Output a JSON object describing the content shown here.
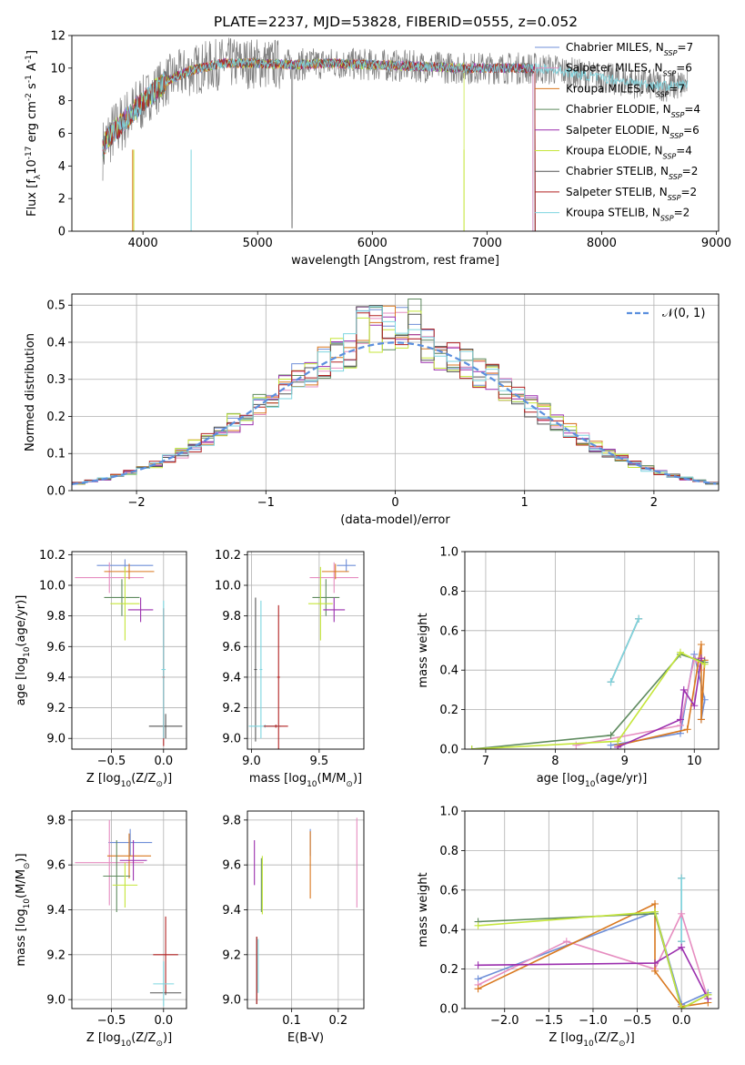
{
  "title": "PLATE=2237, MJD=53828, FIBERID=0555, z=0.052",
  "series": [
    {
      "id": "chabrier_miles",
      "label": "Chabrier MILES, N$_{SSP}$=7",
      "base": "Chabrier MILES, N",
      "sub": "SSP",
      "tail": "=7",
      "color": "#6f8fd8"
    },
    {
      "id": "salpeter_miles",
      "label": "Salpeter MILES, N$_{SSP}$=6",
      "base": "Salpeter MILES, N",
      "sub": "SSP",
      "tail": "=6",
      "color": "#e68dc0"
    },
    {
      "id": "kroupa_miles",
      "label": "Kroupa MILES, N$_{SSP}$=7",
      "base": "Kroupa MILES, N",
      "sub": "SSP",
      "tail": "=7",
      "color": "#d9781f"
    },
    {
      "id": "chabrier_elodie",
      "label": "Chabrier ELODIE, N$_{SSP}$=4",
      "base": "Chabrier ELODIE, N",
      "sub": "SSP",
      "tail": "=4",
      "color": "#5f8b5f"
    },
    {
      "id": "salpeter_elodie",
      "label": "Salpeter ELODIE, N$_{SSP}$=6",
      "base": "Salpeter ELODIE, N",
      "sub": "SSP",
      "tail": "=6",
      "color": "#9b2fae"
    },
    {
      "id": "kroupa_elodie",
      "label": "Kroupa ELODIE, N$_{SSP}$=4",
      "base": "Kroupa ELODIE, N",
      "sub": "SSP",
      "tail": "=4",
      "color": "#c5e63a"
    },
    {
      "id": "chabrier_stelib",
      "label": "Chabrier STELIB, N$_{SSP}$=2",
      "base": "Chabrier STELIB, N",
      "sub": "SSP",
      "tail": "=2",
      "color": "#555555"
    },
    {
      "id": "salpeter_stelib",
      "label": "Salpeter STELIB, N$_{SSP}$=2",
      "base": "Salpeter STELIB, N",
      "sub": "SSP",
      "tail": "=2",
      "color": "#b22222"
    },
    {
      "id": "kroupa_stelib",
      "label": "Kroupa STELIB, N$_{SSP}$=2",
      "base": "Kroupa STELIB, N",
      "sub": "SSP",
      "tail": "=2",
      "color": "#7ed6e0"
    }
  ],
  "chart_data": [
    {
      "id": "spectrum",
      "type": "line",
      "xlabel": "wavelength [Angstrom, rest frame]",
      "ylabel": "Flux [f$_\\lambda$10$^{-17}$ erg cm$^{-2}$ s$^{-1}$ A$^{-1}$]",
      "xlim": [
        3380,
        9020
      ],
      "ylim": [
        0,
        12
      ],
      "xticks": [
        4000,
        5000,
        6000,
        7000,
        8000,
        9000
      ],
      "yticks": [
        0,
        2,
        4,
        6,
        8,
        10,
        12
      ],
      "grid": false,
      "data_note": "observed spectrum (grey) 3650-8750 A: rises from ~5 at 3650 A to ~10 at 4500 A, stays ~10-10.5 to 7400 A, then declines to ~8.5-9 by 8700 A; model fits overlay the data and truncate at different wavelengths",
      "data_curve": {
        "x": [
          3650,
          3700,
          3800,
          3900,
          4000,
          4100,
          4200,
          4300,
          4400,
          4500,
          4700,
          5000,
          5300,
          5600,
          6000,
          6400,
          6800,
          7200,
          7400,
          7600,
          7800,
          8000,
          8200,
          8400,
          8600,
          8750
        ],
        "y": [
          5.0,
          5.8,
          6.5,
          7.2,
          8.0,
          8.6,
          9.2,
          9.5,
          9.8,
          10.0,
          10.3,
          10.3,
          10.2,
          10.3,
          10.2,
          10.1,
          10.0,
          10.0,
          10.0,
          9.9,
          9.6,
          9.4,
          9.2,
          9.0,
          8.9,
          9.0
        ]
      },
      "model_end_wavelength": {
        "chabrier_miles": 7400,
        "salpeter_miles": 7400,
        "kroupa_miles": 7420,
        "kroupa_elodie": 6800,
        "kroupa_stelib": 8750
      },
      "legend_location": "right"
    },
    {
      "id": "residuals",
      "type": "step",
      "xlabel": "(data-model)/error",
      "ylabel": "Normed distribution",
      "xlim": [
        -2.5,
        2.5
      ],
      "ylim": [
        0,
        0.53
      ],
      "xticks": [
        -2,
        -1,
        0,
        1,
        2
      ],
      "yticks": [
        0.0,
        0.1,
        0.2,
        0.3,
        0.4,
        0.5
      ],
      "grid": true,
      "reference": {
        "label": "$\\mathcal{N}(0,1)$",
        "display": "𝒩(0, 1)",
        "color": "#5b8fde",
        "style": "dashed",
        "mean": 0,
        "sigma": 1
      },
      "bin_width": 0.1,
      "note": "nine histograms (one per model) closely following the unit normal, with peaks near 0.47-0.51 around x=-0.2 to 0.15"
    },
    {
      "id": "age_vs_Z",
      "type": "errorbar",
      "xlabel": "Z [log$_{10}$(Z/Z$_\\odot$)]",
      "ylabel": "age  [log$_{10}$(age/yr)]",
      "xlim": [
        -0.88,
        0.22
      ],
      "ylim": [
        8.93,
        10.22
      ],
      "xticks": [
        -0.5,
        0.0
      ],
      "yticks": [
        9.0,
        9.2,
        9.4,
        9.6,
        9.8,
        10.0,
        10.2
      ],
      "grid": true,
      "points": [
        {
          "s": "chabrier_miles",
          "x": -0.37,
          "xerr": 0.27,
          "y": 10.13,
          "yerr": 0.04
        },
        {
          "s": "salpeter_miles",
          "x": -0.52,
          "xerr": 0.33,
          "y": 10.05,
          "yerr": 0.1
        },
        {
          "s": "kroupa_miles",
          "x": -0.33,
          "xerr": 0.24,
          "y": 10.09,
          "yerr": 0.05
        },
        {
          "s": "chabrier_elodie",
          "x": -0.4,
          "xerr": 0.17,
          "y": 9.92,
          "yerr": 0.12
        },
        {
          "s": "salpeter_elodie",
          "x": -0.22,
          "xerr": 0.12,
          "y": 9.84,
          "yerr": 0.08
        },
        {
          "s": "kroupa_elodie",
          "x": -0.37,
          "xerr": 0.14,
          "y": 9.88,
          "yerr": 0.24
        },
        {
          "s": "chabrier_stelib",
          "x": 0.02,
          "xerr": 0.16,
          "y": 9.08,
          "yerr": 0.08
        },
        {
          "s": "salpeter_stelib",
          "x": 0.0,
          "xerr": 0.01,
          "y": 9.4,
          "yerr": 0.45
        },
        {
          "s": "kroupa_stelib",
          "x": 0.0,
          "xerr": 0.02,
          "y": 9.45,
          "yerr": 0.45
        }
      ]
    },
    {
      "id": "age_vs_mass",
      "type": "errorbar",
      "xlabel": "mass [log$_{10}$(M/M$_\\odot$)]",
      "ylabel": "",
      "xlim": [
        8.97,
        9.83
      ],
      "ylim": [
        8.93,
        10.22
      ],
      "xticks": [
        9.0,
        9.5
      ],
      "yticks": [
        9.0,
        9.2,
        9.4,
        9.6,
        9.8,
        10.0,
        10.2
      ],
      "grid": true,
      "points": [
        {
          "s": "chabrier_miles",
          "x": 9.7,
          "xerr": 0.07,
          "y": 10.13,
          "yerr": 0.04
        },
        {
          "s": "salpeter_miles",
          "x": 9.61,
          "xerr": 0.18,
          "y": 10.05,
          "yerr": 0.1
        },
        {
          "s": "kroupa_miles",
          "x": 9.62,
          "xerr": 0.1,
          "y": 10.09,
          "yerr": 0.05
        },
        {
          "s": "chabrier_elodie",
          "x": 9.55,
          "xerr": 0.1,
          "y": 9.92,
          "yerr": 0.12
        },
        {
          "s": "salpeter_elodie",
          "x": 9.61,
          "xerr": 0.08,
          "y": 9.84,
          "yerr": 0.08
        },
        {
          "s": "kroupa_elodie",
          "x": 9.51,
          "xerr": 0.09,
          "y": 9.88,
          "yerr": 0.24
        },
        {
          "s": "chabrier_stelib",
          "x": 9.03,
          "xerr": 0.01,
          "y": 9.45,
          "yerr": 0.47
        },
        {
          "s": "salpeter_stelib",
          "x": 9.2,
          "xerr": 0.01,
          "y": 9.4,
          "yerr": 0.47
        },
        {
          "s": "kroupa_stelib",
          "x": 9.07,
          "xerr": 0.01,
          "y": 9.45,
          "yerr": 0.45
        },
        {
          "s": "kroupa_stelib",
          "x": 9.1,
          "xerr": 0.12,
          "y": 9.08,
          "yerr": 0.01
        },
        {
          "s": "salpeter_stelib",
          "x": 9.18,
          "xerr": 0.09,
          "y": 9.08,
          "yerr": 0.01
        }
      ]
    },
    {
      "id": "weight_vs_age",
      "type": "line",
      "xlabel": "age  [log$_{10}$(age/yr)]",
      "ylabel": "mass weight",
      "xlim": [
        6.7,
        10.35
      ],
      "ylim": [
        0,
        1
      ],
      "xticks": [
        7,
        8,
        9,
        10
      ],
      "yticks": [
        0.0,
        0.2,
        0.4,
        0.6,
        0.8,
        1.0
      ],
      "grid": true,
      "lines": [
        {
          "s": "chabrier_stelib",
          "x": [
            8.8,
            9.2
          ],
          "y": [
            0.34,
            0.66
          ]
        },
        {
          "s": "kroupa_stelib",
          "x": [
            8.8,
            9.2
          ],
          "y": [
            0.34,
            0.66
          ]
        },
        {
          "s": "chabrier_miles",
          "x": [
            8.8,
            9.8,
            10.0,
            10.15,
            10.1
          ],
          "y": [
            0.02,
            0.08,
            0.48,
            0.25,
            0.15
          ]
        },
        {
          "s": "salpeter_miles",
          "x": [
            8.3,
            9.8,
            10.0,
            10.1
          ],
          "y": [
            0.02,
            0.12,
            0.46,
            0.4
          ]
        },
        {
          "s": "kroupa_miles",
          "x": [
            8.9,
            9.9,
            10.1,
            10.1,
            10.15
          ],
          "y": [
            0.02,
            0.1,
            0.53,
            0.15,
            0.45
          ]
        },
        {
          "s": "chabrier_elodie",
          "x": [
            6.8,
            8.8,
            9.8,
            10.15
          ],
          "y": [
            0.0,
            0.07,
            0.48,
            0.44
          ]
        },
        {
          "s": "salpeter_elodie",
          "x": [
            8.9,
            9.8,
            9.85,
            10.0,
            10.1
          ],
          "y": [
            0.01,
            0.15,
            0.3,
            0.22,
            0.46
          ]
        },
        {
          "s": "kroupa_elodie",
          "x": [
            6.8,
            8.9,
            9.8,
            10.15
          ],
          "y": [
            0.0,
            0.04,
            0.49,
            0.43
          ]
        }
      ]
    },
    {
      "id": "mass_vs_Z",
      "type": "errorbar",
      "xlabel": "Z [log$_{10}$(Z/Z$_\\odot$)]",
      "ylabel": "mass [log$_{10}$(M/M$_\\odot$)]",
      "xlim": [
        -0.88,
        0.22
      ],
      "ylim": [
        8.96,
        9.84
      ],
      "xticks": [
        -0.5,
        0.0
      ],
      "yticks": [
        9.0,
        9.2,
        9.4,
        9.6,
        9.8
      ],
      "grid": true,
      "points": [
        {
          "s": "chabrier_miles",
          "x": -0.32,
          "xerr": 0.21,
          "y": 9.7,
          "yerr": 0.06
        },
        {
          "s": "salpeter_miles",
          "x": -0.52,
          "xerr": 0.33,
          "y": 9.61,
          "yerr": 0.19
        },
        {
          "s": "kroupa_miles",
          "x": -0.33,
          "xerr": 0.21,
          "y": 9.64,
          "yerr": 0.1
        },
        {
          "s": "chabrier_elodie",
          "x": -0.45,
          "xerr": 0.13,
          "y": 9.55,
          "yerr": 0.16
        },
        {
          "s": "salpeter_elodie",
          "x": -0.29,
          "xerr": 0.13,
          "y": 9.62,
          "yerr": 0.09
        },
        {
          "s": "kroupa_elodie",
          "x": -0.37,
          "xerr": 0.12,
          "y": 9.51,
          "yerr": 0.1
        },
        {
          "s": "chabrier_stelib",
          "x": 0.02,
          "xerr": 0.15,
          "y": 9.03,
          "yerr": 0.01
        },
        {
          "s": "salpeter_stelib",
          "x": 0.02,
          "xerr": 0.12,
          "y": 9.2,
          "yerr": 0.17
        },
        {
          "s": "kroupa_stelib",
          "x": 0.0,
          "xerr": 0.1,
          "y": 9.07,
          "yerr": 0.1
        }
      ]
    },
    {
      "id": "mass_vs_ebv",
      "type": "errorbar",
      "xlabel": "E(B-V)",
      "ylabel": "",
      "xlim": [
        0.005,
        0.255
      ],
      "ylim": [
        8.96,
        9.84
      ],
      "xticks": [
        0.1,
        0.2
      ],
      "yticks": [
        9.0,
        9.2,
        9.4,
        9.6,
        9.8
      ],
      "grid": true,
      "points": [
        {
          "s": "chabrier_miles",
          "x": 0.14,
          "xerr": 0.0,
          "y": 9.7,
          "yerr": 0.06
        },
        {
          "s": "salpeter_miles",
          "x": 0.24,
          "xerr": 0.0,
          "y": 9.61,
          "yerr": 0.2
        },
        {
          "s": "kroupa_miles",
          "x": 0.14,
          "xerr": 0.0,
          "y": 9.6,
          "yerr": 0.15
        },
        {
          "s": "chabrier_elodie",
          "x": 0.035,
          "xerr": 0.0,
          "y": 9.51,
          "yerr": 0.12
        },
        {
          "s": "salpeter_elodie",
          "x": 0.02,
          "xerr": 0.0,
          "y": 9.61,
          "yerr": 0.1
        },
        {
          "s": "kroupa_elodie",
          "x": 0.037,
          "xerr": 0.0,
          "y": 9.51,
          "yerr": 0.13
        },
        {
          "s": "chabrier_stelib",
          "x": 0.025,
          "xerr": 0.0,
          "y": 9.13,
          "yerr": 0.15
        },
        {
          "s": "salpeter_stelib",
          "x": 0.025,
          "xerr": 0.0,
          "y": 9.13,
          "yerr": 0.15
        },
        {
          "s": "kroupa_stelib",
          "x": 0.028,
          "xerr": 0.0,
          "y": 9.15,
          "yerr": 0.12
        }
      ]
    },
    {
      "id": "weight_vs_Z",
      "type": "line",
      "xlabel": "Z [log$_{10}$(Z/Z$_\\odot$)]",
      "ylabel": "mass weight",
      "xlim": [
        -2.45,
        0.42
      ],
      "ylim": [
        0,
        1
      ],
      "xticks": [
        -2.0,
        -1.5,
        -1.0,
        -0.5,
        0.0
      ],
      "yticks": [
        0.0,
        0.2,
        0.4,
        0.6,
        0.8,
        1.0
      ],
      "grid": true,
      "lines": [
        {
          "s": "chabrier_stelib",
          "x": [
            0.0,
            0.0
          ],
          "y": [
            0.34,
            0.66
          ]
        },
        {
          "s": "kroupa_stelib",
          "x": [
            0.0,
            0.0
          ],
          "y": [
            0.34,
            0.66
          ]
        },
        {
          "s": "chabrier_miles",
          "x": [
            -2.3,
            -0.3,
            0.0,
            0.3
          ],
          "y": [
            0.15,
            0.49,
            0.02,
            0.08
          ]
        },
        {
          "s": "salpeter_miles",
          "x": [
            -2.3,
            -1.3,
            -0.3,
            0.0,
            0.3
          ],
          "y": [
            0.12,
            0.34,
            0.2,
            0.48,
            0.05
          ]
        },
        {
          "s": "kroupa_miles",
          "x": [
            -2.3,
            -0.3,
            -0.3,
            0.0,
            0.3
          ],
          "y": [
            0.1,
            0.53,
            0.19,
            0.01,
            0.03
          ]
        },
        {
          "s": "chabrier_elodie",
          "x": [
            -2.3,
            -0.3,
            0.0,
            0.3
          ],
          "y": [
            0.44,
            0.48,
            0.0,
            0.07
          ]
        },
        {
          "s": "salpeter_elodie",
          "x": [
            -2.3,
            -0.3,
            0.0,
            0.3
          ],
          "y": [
            0.22,
            0.23,
            0.31,
            0.05
          ]
        },
        {
          "s": "kroupa_elodie",
          "x": [
            -2.3,
            -0.3,
            0.0,
            0.3
          ],
          "y": [
            0.42,
            0.49,
            0.0,
            0.07
          ]
        }
      ]
    }
  ]
}
